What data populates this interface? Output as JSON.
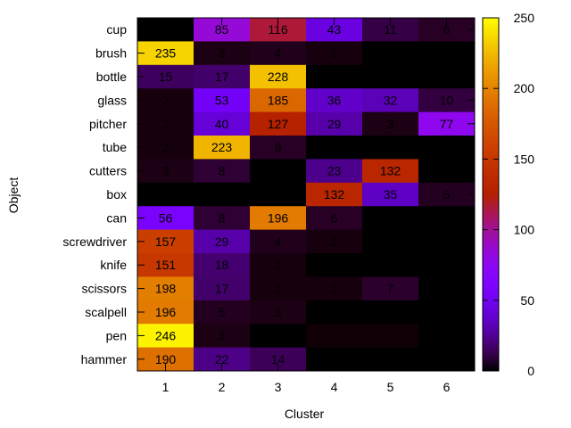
{
  "chart_data": {
    "type": "heatmap",
    "title": "",
    "xlabel": "Cluster",
    "ylabel": "Object",
    "x_categories": [
      "1",
      "2",
      "3",
      "4",
      "5",
      "6"
    ],
    "y_categories": [
      "cup",
      "brush",
      "bottle",
      "glass",
      "pitcher",
      "tube",
      "cutters",
      "box",
      "can",
      "screwdriver",
      "knife",
      "scissors",
      "scalpell",
      "pen",
      "hammer"
    ],
    "values": [
      [
        0,
        85,
        116,
        43,
        11,
        6
      ],
      [
        235,
        3,
        4,
        2,
        0,
        0
      ],
      [
        15,
        17,
        228,
        0,
        0,
        0
      ],
      [
        2,
        53,
        185,
        36,
        32,
        10
      ],
      [
        2,
        40,
        127,
        29,
        3,
        77
      ],
      [
        2,
        223,
        6,
        0,
        0,
        0
      ],
      [
        3,
        8,
        0,
        23,
        132,
        0
      ],
      [
        0,
        0,
        0,
        132,
        35,
        5
      ],
      [
        56,
        8,
        196,
        6,
        0,
        0
      ],
      [
        157,
        29,
        4,
        2,
        0,
        0
      ],
      [
        151,
        18,
        2,
        0,
        0,
        0
      ],
      [
        198,
        17,
        2,
        2,
        7,
        0
      ],
      [
        196,
        5,
        3,
        0,
        0,
        0
      ],
      [
        246,
        3,
        0,
        1,
        1,
        0
      ],
      [
        190,
        22,
        14,
        0,
        0,
        0
      ]
    ],
    "labels": [
      [
        "",
        "85",
        "116",
        "43",
        "11",
        "6"
      ],
      [
        "235",
        "3",
        "4",
        "2",
        "",
        ""
      ],
      [
        "15",
        "17",
        "228",
        "",
        "",
        ""
      ],
      [
        "2",
        "53",
        "185",
        "36",
        "32",
        "10"
      ],
      [
        "2",
        "40",
        "127",
        "29",
        "3",
        "77"
      ],
      [
        "2",
        "223",
        "6",
        "",
        "",
        ""
      ],
      [
        "3",
        "8",
        "",
        "23",
        "132",
        ""
      ],
      [
        "",
        "",
        "",
        "132",
        "35",
        "5"
      ],
      [
        "56",
        "8",
        "196",
        "6",
        "",
        ""
      ],
      [
        "157",
        "29",
        "4",
        "2",
        "",
        ""
      ],
      [
        "151",
        "18",
        "2",
        "",
        "",
        ""
      ],
      [
        "198",
        "17",
        "2",
        "2",
        "7",
        ""
      ],
      [
        "196",
        "5",
        "3",
        "",
        "",
        ""
      ],
      [
        "246",
        "3",
        "",
        "",
        "",
        ""
      ],
      [
        "190",
        "22",
        "14",
        "",
        "",
        ""
      ]
    ],
    "colorbar": {
      "range": [
        0,
        250
      ],
      "ticks": [
        "0",
        "50",
        "100",
        "150",
        "200",
        "250"
      ],
      "palette": "black-purple-red-orange-yellow"
    }
  }
}
